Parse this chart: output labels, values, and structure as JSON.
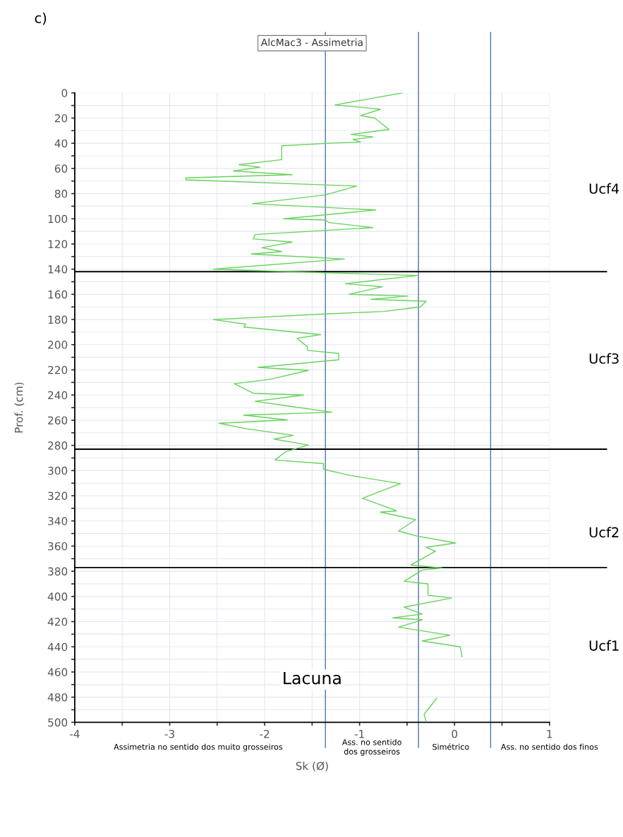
{
  "chart_data": {
    "type": "line",
    "title": "AlcMac3 - Assimetria",
    "xlabel": "Sk (Ø)",
    "ylabel": "Prof. (cm)",
    "annotations": [
      "c)",
      "Ucf4",
      "Ucf3",
      "Ucf2",
      "Ucf1",
      "Lacuna",
      "Assimetria no sentido dos muito grosseiros",
      "Ass. no sentido\ndos grosseiros",
      "Simétrico",
      "Ass. no sentido dos finos"
    ],
    "xlim": [
      -4,
      1
    ],
    "xticks": [
      -4,
      {
        "value": -3.5,
        "label": null
      },
      -3,
      {
        "value": -2.5,
        "label": null
      },
      -2,
      {
        "value": -1.5,
        "label": null
      },
      -1,
      {
        "value": -0.5,
        "label": null
      },
      0,
      {
        "value": 0.5,
        "label": null
      },
      1
    ],
    "ylim": [
      500,
      0
    ],
    "yticks": [
      0,
      {
        "value": 10,
        "label": null
      },
      20,
      {
        "value": 30,
        "label": null
      },
      40,
      {
        "value": 50,
        "label": null
      },
      60,
      {
        "value": 70,
        "label": null
      },
      80,
      {
        "value": 90,
        "label": null
      },
      100,
      {
        "value": 110,
        "label": null
      },
      120,
      {
        "value": 130,
        "label": null
      },
      140,
      {
        "value": 150,
        "label": null
      },
      160,
      {
        "value": 170,
        "label": null
      },
      180,
      {
        "value": 190,
        "label": null
      },
      200,
      {
        "value": 210,
        "label": null
      },
      220,
      {
        "value": 230,
        "label": null
      },
      240,
      {
        "value": 250,
        "label": null
      },
      260,
      {
        "value": 270,
        "label": null
      },
      280,
      {
        "value": 290,
        "label": null
      },
      300,
      {
        "value": 310,
        "label": null
      },
      320,
      {
        "value": 330,
        "label": null
      },
      340,
      {
        "value": 350,
        "label": null
      },
      360,
      {
        "value": 370,
        "label": null
      },
      380,
      {
        "value": 390,
        "label": null
      },
      400,
      {
        "value": 410,
        "label": null
      },
      420,
      {
        "value": 430,
        "label": null
      },
      440,
      {
        "value": 450,
        "label": null
      },
      460,
      {
        "value": 470,
        "label": null
      },
      480,
      {
        "value": 490,
        "label": null
      },
      500
    ],
    "grid": true,
    "legend": false,
    "marker": "none",
    "line_style": "solid",
    "ref_lines": [
      {
        "axis": "x",
        "value": -1.36,
        "color": "#4f74a8"
      },
      {
        "axis": "x",
        "value": -0.38,
        "color": "#4f74a8"
      },
      {
        "axis": "x",
        "value": 0.38,
        "color": "#4f74a8"
      },
      {
        "axis": "y",
        "value": 142,
        "color": "#000000"
      },
      {
        "axis": "y",
        "value": 283,
        "color": "#000000"
      },
      {
        "axis": "y",
        "value": 377,
        "color": "#000000"
      }
    ],
    "series": [
      {
        "color": "#66d25a",
        "x": [
          -0.55,
          -1.26,
          -1.05,
          -0.78,
          -0.99,
          -0.84,
          -0.69,
          -1.09,
          -0.86,
          -1.07,
          -0.99,
          -1.32,
          -1.82,
          -1.82,
          -2.27,
          -2.05,
          -2.33,
          -1.71,
          -2.83,
          -2.83,
          -1.03,
          -1.36,
          -2.13,
          -0.83,
          -1.8,
          -1.36,
          -1.32,
          -0.86,
          -2.1,
          -2.12,
          -1.71,
          -2.03,
          -1.82,
          -2.14,
          -1.16,
          -2.54,
          -1.91,
          -0.39,
          -1.15,
          -0.76,
          -1.11,
          -0.49,
          -0.88,
          -0.3,
          -0.36,
          -0.74,
          -1.36,
          -2.54,
          -2.2,
          -2.22,
          -1.41,
          -1.66,
          -1.55,
          -1.55,
          -1.22,
          -1.22,
          -2.07,
          -1.54,
          -1.95,
          -2.32,
          -2.12,
          -1.59,
          -2.1,
          -1.82,
          -1.29,
          -2.22,
          -1.76,
          -2.48,
          -2.2,
          -1.7,
          -1.9,
          -1.54,
          -1.78,
          -1.89,
          -1.38,
          -1.38,
          -1.11,
          -0.57,
          -0.97,
          -0.61,
          -0.78,
          -0.41,
          -0.59,
          -0.4,
          0.01,
          -0.3,
          -0.2,
          -0.46,
          -0.13,
          -0.34,
          -0.53,
          -0.28,
          -0.28,
          -0.03,
          -0.53,
          -0.34,
          -0.65,
          -0.34,
          -0.59,
          -0.05,
          -0.34,
          0.06,
          0.08,
          null,
          -0.19,
          -0.32,
          -0.3
        ],
        "values": [
          0,
          9.6,
          11,
          13,
          18,
          20,
          29,
          33,
          35,
          37,
          39,
          40,
          42,
          53,
          57,
          59,
          62,
          65,
          67.5,
          69,
          74,
          81,
          88,
          93,
          100,
          101,
          103,
          107,
          112.5,
          116,
          118.5,
          123,
          126,
          128,
          132,
          140,
          141.6,
          145,
          151.6,
          154,
          160,
          161.4,
          164,
          165.5,
          170,
          173.6,
          175.6,
          180,
          183.7,
          186,
          192,
          195,
          201.6,
          204.5,
          207,
          212,
          218,
          220.4,
          227.6,
          231,
          238.6,
          240,
          245,
          248,
          253.7,
          256,
          259.8,
          262.4,
          266.7,
          272,
          275,
          279.7,
          285,
          291.6,
          294.5,
          299,
          303.7,
          310.4,
          322,
          332,
          333,
          339,
          348,
          352,
          357.5,
          361,
          364,
          375,
          377.4,
          379,
          388,
          390,
          399,
          401.3,
          408.5,
          414,
          417,
          418.6,
          424.4,
          430.8,
          435.4,
          440,
          448,
          null,
          481,
          493.6,
          499.4
        ]
      }
    ]
  }
}
